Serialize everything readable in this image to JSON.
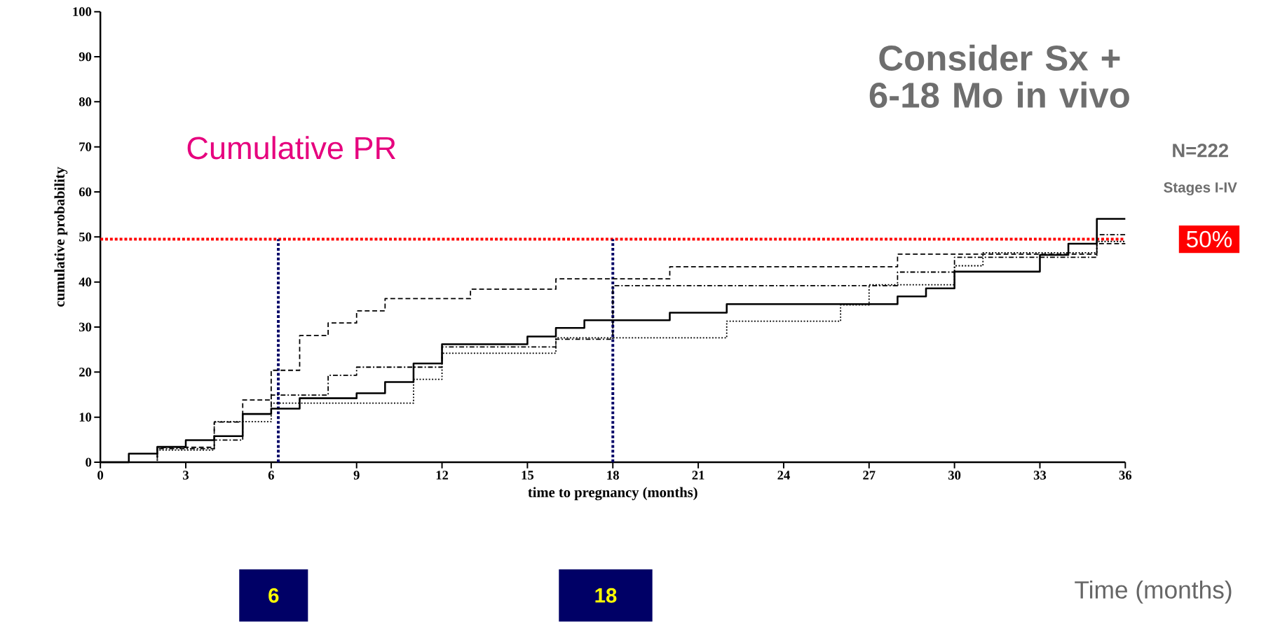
{
  "chart_data": {
    "type": "step",
    "title": "Consider Sx + 6-18 Mo in vivo",
    "xlabel": "time to pregnancy (months)",
    "ylabel": "cumulative probability",
    "annotations": [
      "Cumulative PR",
      "N=222",
      "Stages I-IV",
      "Time (months)",
      "6",
      "18"
    ],
    "series": [
      {
        "color": "#000000",
        "line_style": "solid",
        "x": [
          0,
          1,
          2,
          3,
          4,
          5,
          6,
          7,
          9,
          10,
          11,
          12,
          15,
          16,
          17,
          20,
          22,
          28,
          29,
          30,
          33,
          34,
          35,
          36
        ],
        "values": [
          0,
          1.9,
          3.4,
          4.9,
          5.8,
          10.7,
          11.9,
          14.2,
          15.3,
          17.8,
          21.9,
          26.2,
          27.9,
          29.8,
          31.5,
          33.2,
          35.1,
          36.8,
          38.6,
          42.3,
          46,
          48.5,
          54,
          54
        ]
      },
      {
        "color": "#000000",
        "line_style": "dashed",
        "x": [
          0,
          2,
          4,
          5,
          6,
          7,
          8,
          9,
          10,
          13,
          16,
          20,
          28,
          35,
          36
        ],
        "values": [
          0,
          3.3,
          8.9,
          13.8,
          20.4,
          28.1,
          30.9,
          33.6,
          36.3,
          38.4,
          40.7,
          43.4,
          46.2,
          48.5,
          48.5
        ]
      },
      {
        "color": "#000000",
        "line_style": "dotted",
        "x": [
          0,
          2,
          4,
          6,
          11,
          12,
          16,
          22,
          26,
          27,
          30,
          31,
          35,
          36
        ],
        "values": [
          0,
          2.7,
          9.0,
          13.1,
          18.4,
          24.2,
          27.6,
          31.3,
          34.9,
          39.4,
          43.6,
          46.5,
          49,
          49
        ]
      },
      {
        "color": "#000000",
        "line_style": "dashdot",
        "x": [
          0,
          2,
          4,
          5,
          6,
          8,
          9,
          12,
          16,
          18,
          28,
          30,
          35,
          36
        ],
        "values": [
          0,
          3.0,
          4.9,
          10.7,
          14.9,
          19.3,
          21.1,
          25.6,
          27.3,
          39.2,
          42.2,
          45.5,
          50.5,
          50.5
        ]
      }
    ],
    "xlim": [
      0,
      36
    ],
    "xticks": [
      0,
      3,
      6,
      9,
      12,
      15,
      18,
      21,
      24,
      27,
      30,
      33,
      36
    ],
    "ylim": [
      0,
      100
    ],
    "yticks": [
      0,
      10,
      20,
      30,
      40,
      50,
      60,
      70,
      80,
      90,
      100
    ],
    "ref_lines": [
      {
        "axis": "y",
        "value": 49.5,
        "label": "50%",
        "color": "#ff0000",
        "line_style": "dotted"
      },
      {
        "axis": "x",
        "value": 6.25,
        "color": "#000066",
        "line_style": "dotted"
      },
      {
        "axis": "x",
        "value": 18,
        "color": "#000066",
        "line_style": "dotted"
      }
    ]
  }
}
